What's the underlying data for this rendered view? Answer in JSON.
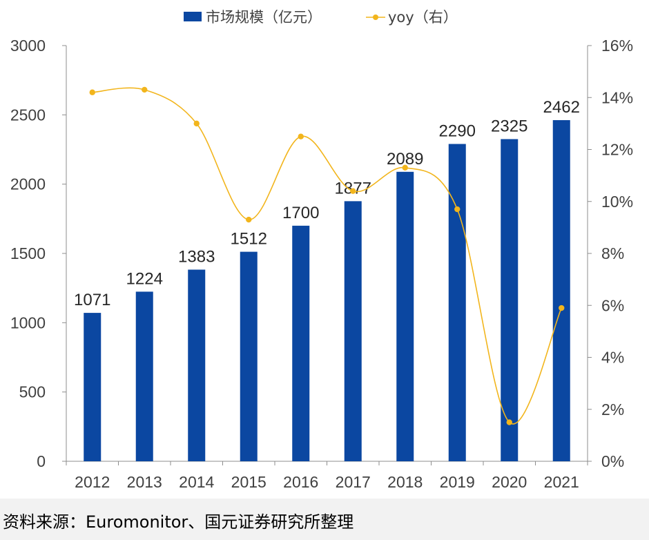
{
  "chart_data": {
    "type": "bar",
    "categories": [
      "2012",
      "2013",
      "2014",
      "2015",
      "2016",
      "2017",
      "2018",
      "2019",
      "2020",
      "2021"
    ],
    "series": [
      {
        "name": "市场规模（亿元）",
        "type": "bar",
        "axis": "left",
        "color": "#0b47a1",
        "values": [
          1071,
          1224,
          1383,
          1512,
          1700,
          1877,
          2089,
          2290,
          2325,
          2462
        ]
      },
      {
        "name": "yoy（右）",
        "type": "line",
        "axis": "right",
        "color": "#f2b51c",
        "values": [
          14.2,
          14.3,
          13.0,
          9.3,
          12.5,
          10.4,
          11.3,
          9.7,
          1.5,
          5.9
        ]
      }
    ],
    "y_left": {
      "ylim": [
        0,
        3000
      ],
      "ticks": [
        "0",
        "500",
        "1000",
        "1500",
        "2000",
        "2500",
        "3000"
      ]
    },
    "y_right": {
      "ylim": [
        0,
        16
      ],
      "ticks": [
        "0%",
        "2%",
        "4%",
        "6%",
        "8%",
        "10%",
        "12%",
        "14%",
        "16%"
      ]
    },
    "grid": false,
    "legend_position": "top-center",
    "title": "",
    "xlabel": "",
    "ylabel": ""
  },
  "source_note": "资料来源：Euromonitor、国元证券研究所整理"
}
